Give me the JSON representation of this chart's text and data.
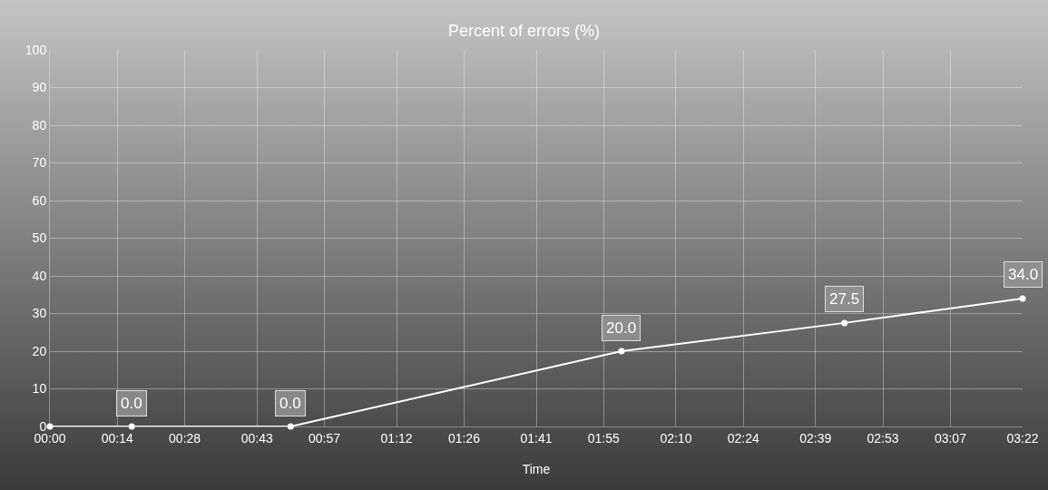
{
  "chart_data": {
    "type": "line",
    "title": "Percent of errors (%)",
    "xlabel": "Time",
    "x": [
      0,
      17,
      50,
      118.7,
      165,
      202
    ],
    "series": [
      {
        "color": "#ffffff",
        "values": [
          0,
          0,
          0,
          20,
          27.5,
          34
        ],
        "value_labels": [
          null,
          "0.0",
          "0.0",
          "20.0",
          "27.5",
          "34.0"
        ]
      }
    ],
    "xlim": [
      0,
      202
    ],
    "xticks": [
      {
        "value": 0,
        "label": "00:00"
      },
      {
        "value": 14,
        "label": "00:14"
      },
      {
        "value": 28,
        "label": "00:28"
      },
      {
        "value": 43,
        "label": "00:43"
      },
      {
        "value": 57,
        "label": "00:57"
      },
      {
        "value": 72,
        "label": "01:12"
      },
      {
        "value": 86,
        "label": "01:26"
      },
      {
        "value": 101,
        "label": "01:41"
      },
      {
        "value": 115,
        "label": "01:55"
      },
      {
        "value": 130,
        "label": "02:10"
      },
      {
        "value": 144,
        "label": "02:24"
      },
      {
        "value": 159,
        "label": "02:39"
      },
      {
        "value": 173,
        "label": "02:53"
      },
      {
        "value": 187,
        "label": "03:07"
      },
      {
        "value": 202,
        "label": "03:22"
      }
    ],
    "ylim": [
      0,
      100
    ],
    "yticks": [
      0,
      10,
      20,
      30,
      40,
      50,
      60,
      70,
      80,
      90,
      100
    ],
    "grid": true,
    "marker": "circle",
    "line_style": "solid",
    "legend": false
  }
}
